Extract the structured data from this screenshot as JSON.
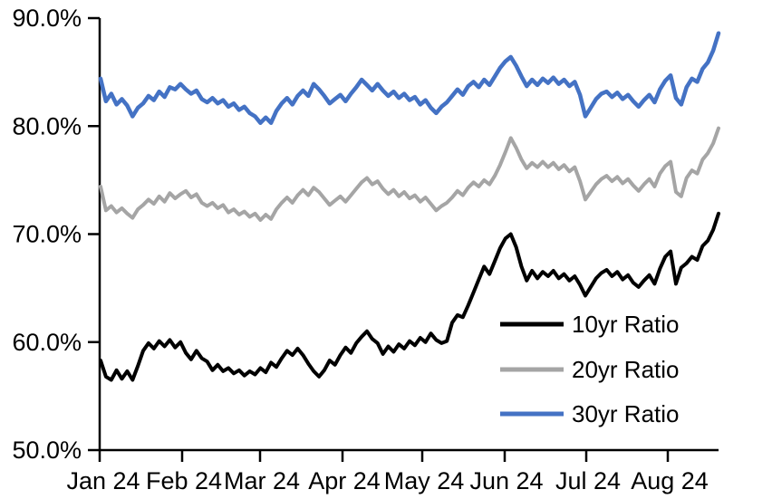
{
  "chart_data": {
    "type": "line",
    "title": "",
    "xlabel": "",
    "ylabel": "",
    "grid": false,
    "background_color": "#ffffff",
    "axis_color": "#000000",
    "y_axis": {
      "min": 50,
      "max": 90,
      "tick_step": 10,
      "tick_labels_top_to_bottom": [
        "90.0%",
        "80.0%",
        "70.0%",
        "60.0%",
        "50.0%"
      ]
    },
    "x_axis": {
      "tick_labels": [
        "Jan 24",
        "Feb 24",
        "Mar 24",
        "Apr 24",
        "May 24",
        "Jun 24",
        "Jul 24",
        "Aug 24"
      ],
      "range_note": "daily data, Jan 1 2024 through ~Aug 20 2024, values sampled every 2 days below"
    },
    "legend": {
      "position": "inside-lower-right"
    },
    "series": [
      {
        "name": "10yr Ratio",
        "color": "#000000",
        "values": [
          58.3,
          56.8,
          56.5,
          57.4,
          56.6,
          57.3,
          56.5,
          57.8,
          59.2,
          59.9,
          59.4,
          60.1,
          59.6,
          60.2,
          59.5,
          60.0,
          59.0,
          58.4,
          59.2,
          58.5,
          58.2,
          57.4,
          57.9,
          57.3,
          57.6,
          57.1,
          57.4,
          56.9,
          57.3,
          57.0,
          57.6,
          57.2,
          58.1,
          57.7,
          58.5,
          59.2,
          58.8,
          59.4,
          58.8,
          58.0,
          57.3,
          56.8,
          57.4,
          58.3,
          57.9,
          58.8,
          59.5,
          59.0,
          59.9,
          60.5,
          61.0,
          60.3,
          59.9,
          58.9,
          59.6,
          59.1,
          59.8,
          59.4,
          60.1,
          59.7,
          60.4,
          60.0,
          60.8,
          60.2,
          59.9,
          60.1,
          61.8,
          62.5,
          62.3,
          63.4,
          64.6,
          65.8,
          67.0,
          66.3,
          67.5,
          68.7,
          69.6,
          70.0,
          68.8,
          67.0,
          65.7,
          66.6,
          65.9,
          66.5,
          66.1,
          66.6,
          65.9,
          66.3,
          65.7,
          66.1,
          65.3,
          64.3,
          65.1,
          65.9,
          66.4,
          66.7,
          66.1,
          66.5,
          65.8,
          66.2,
          65.5,
          65.1,
          65.7,
          66.2,
          65.4,
          66.8,
          67.9,
          68.4,
          65.4,
          66.9,
          67.3,
          67.9,
          67.6,
          68.9,
          69.4,
          70.4,
          71.9
        ]
      },
      {
        "name": "20yr Ratio",
        "color": "#A5A5A5",
        "values": [
          74.4,
          72.2,
          72.6,
          72.0,
          72.4,
          71.9,
          71.5,
          72.3,
          72.7,
          73.2,
          72.8,
          73.5,
          73.0,
          73.8,
          73.3,
          73.7,
          74.0,
          73.4,
          73.7,
          72.9,
          72.6,
          72.9,
          72.4,
          72.7,
          72.0,
          72.3,
          71.8,
          72.1,
          71.6,
          71.9,
          71.3,
          71.8,
          71.4,
          72.3,
          72.9,
          73.4,
          72.9,
          73.6,
          74.1,
          73.6,
          74.3,
          73.9,
          73.3,
          72.7,
          73.1,
          73.5,
          73.0,
          73.6,
          74.2,
          74.8,
          75.2,
          74.6,
          74.9,
          74.2,
          73.7,
          74.1,
          73.5,
          73.9,
          73.3,
          73.6,
          73.0,
          73.4,
          72.8,
          72.2,
          72.6,
          72.9,
          73.4,
          74.0,
          73.6,
          74.3,
          74.8,
          74.4,
          75.0,
          74.6,
          75.4,
          76.4,
          77.6,
          78.9,
          78.0,
          76.9,
          76.1,
          76.6,
          76.2,
          76.7,
          76.2,
          76.6,
          76.0,
          76.4,
          75.8,
          76.2,
          74.9,
          73.2,
          73.9,
          74.6,
          75.1,
          75.4,
          74.9,
          75.3,
          74.7,
          75.1,
          74.5,
          74.0,
          74.6,
          75.1,
          74.4,
          75.6,
          76.3,
          76.7,
          73.9,
          73.5,
          75.2,
          75.9,
          75.6,
          76.9,
          77.5,
          78.4,
          79.8
        ]
      },
      {
        "name": "30yr Ratio",
        "color": "#4472C4",
        "values": [
          84.4,
          82.3,
          83.0,
          82.0,
          82.5,
          81.9,
          80.9,
          81.7,
          82.1,
          82.8,
          82.4,
          83.2,
          82.7,
          83.6,
          83.4,
          83.9,
          83.4,
          83.0,
          83.3,
          82.5,
          82.2,
          82.6,
          82.1,
          82.4,
          81.8,
          82.1,
          81.5,
          81.8,
          81.2,
          80.9,
          80.3,
          80.8,
          80.3,
          81.4,
          82.1,
          82.6,
          82.0,
          82.8,
          83.3,
          82.8,
          83.9,
          83.4,
          82.8,
          82.1,
          82.5,
          82.9,
          82.3,
          83.0,
          83.6,
          84.3,
          83.8,
          83.3,
          83.9,
          83.3,
          82.8,
          83.2,
          82.6,
          83.0,
          82.4,
          82.7,
          82.0,
          82.4,
          81.7,
          81.2,
          81.8,
          82.2,
          82.8,
          83.4,
          82.9,
          83.7,
          84.1,
          83.6,
          84.3,
          83.8,
          84.6,
          85.4,
          86.0,
          86.4,
          85.6,
          84.6,
          83.7,
          84.3,
          83.8,
          84.4,
          84.0,
          84.5,
          83.9,
          84.3,
          83.7,
          84.1,
          82.9,
          80.9,
          81.7,
          82.5,
          83.0,
          83.2,
          82.7,
          83.1,
          82.5,
          82.9,
          82.3,
          81.8,
          82.4,
          82.9,
          82.2,
          83.4,
          84.2,
          84.7,
          82.6,
          82.0,
          83.6,
          84.4,
          84.1,
          85.3,
          85.9,
          87.0,
          88.6
        ]
      }
    ]
  }
}
